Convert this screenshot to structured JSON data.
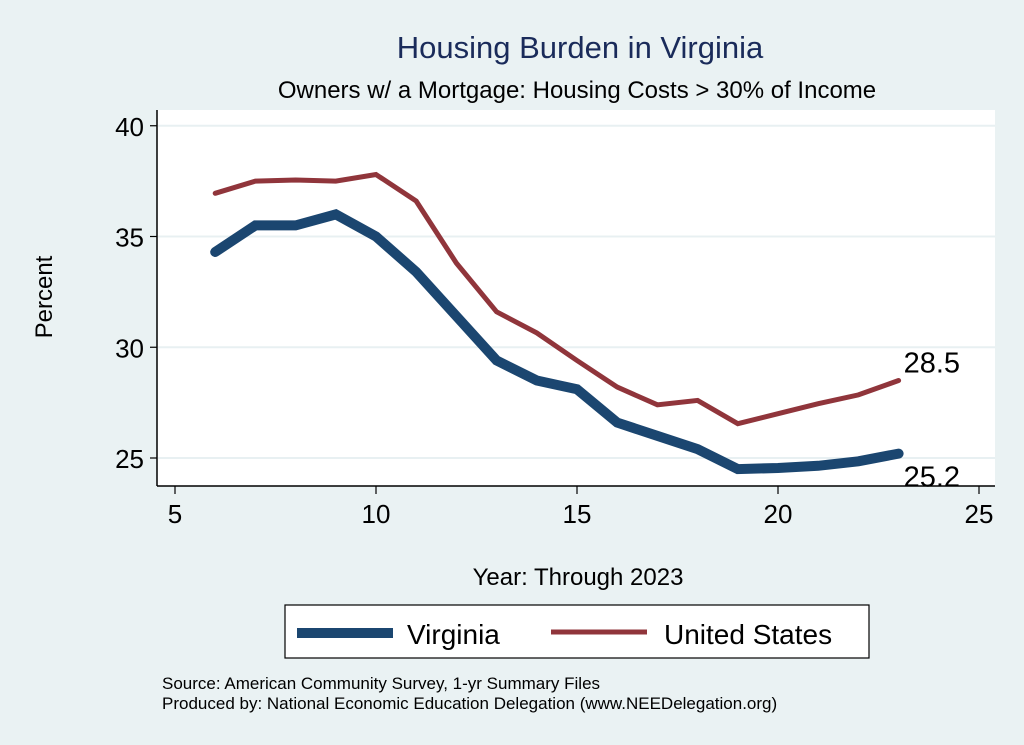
{
  "chart_data": {
    "type": "line",
    "title": "Housing Burden in Virginia",
    "subtitle": "Owners w/ a Mortgage: Housing Costs > 30% of Income",
    "xlabel": "Year: Through 2023",
    "ylabel": "Percent",
    "xlim": [
      5,
      25
    ],
    "ylim": [
      24,
      40.5
    ],
    "xticks": [
      5,
      10,
      15,
      20,
      25
    ],
    "xtick_labels": [
      "5",
      "10",
      "15",
      "20",
      "25"
    ],
    "yticks": [
      25,
      30,
      35,
      40
    ],
    "ytick_labels": [
      "25",
      "30",
      "35",
      "40"
    ],
    "grid": "horizontal",
    "legend_position": "bottom",
    "x": [
      6,
      7,
      8,
      9,
      10,
      11,
      12,
      13,
      14,
      15,
      16,
      17,
      18,
      19,
      20,
      21,
      22,
      23
    ],
    "series": [
      {
        "name": "Virginia",
        "color": "#1b4670",
        "values": [
          34.3,
          35.5,
          35.5,
          36.0,
          35.0,
          33.4,
          31.4,
          29.4,
          28.5,
          28.1,
          26.6,
          26.0,
          25.4,
          24.5,
          24.55,
          24.65,
          24.85,
          25.2
        ],
        "end_label": "25.2"
      },
      {
        "name": "United States",
        "color": "#90353b",
        "values": [
          36.95,
          37.5,
          37.55,
          37.5,
          37.8,
          36.6,
          33.8,
          31.6,
          30.65,
          29.4,
          28.2,
          27.4,
          27.6,
          26.55,
          27.0,
          27.45,
          27.85,
          28.5
        ],
        "end_label": "28.5"
      }
    ],
    "notes": [
      "Source: American Community Survey, 1-yr Summary Files",
      "Produced by: National Economic Education Delegation (www.NEEDelegation.org)"
    ]
  }
}
